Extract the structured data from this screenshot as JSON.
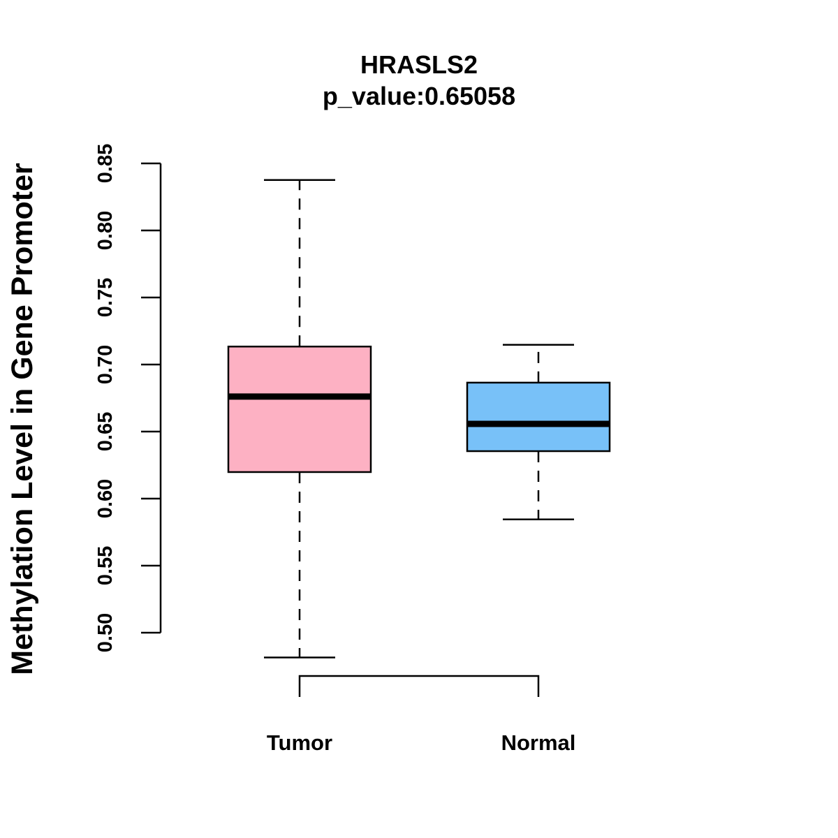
{
  "chart_data": {
    "type": "box",
    "title": "HRASLS2",
    "subtitle": "p_value:0.65058",
    "xlabel": "",
    "ylabel": "Methylation Level in Gene Promoter",
    "ylim": [
      0.5,
      0.85
    ],
    "yticks": [
      "0.50",
      "0.55",
      "0.60",
      "0.65",
      "0.70",
      "0.75",
      "0.80",
      "0.85"
    ],
    "categories": [
      "Tumor",
      "Normal"
    ],
    "boxes": [
      {
        "name": "Tumor",
        "min": 0.4815,
        "q1": 0.6198,
        "median": 0.6761,
        "q3": 0.7134,
        "max": 0.8376,
        "color": "#FDB1C3"
      },
      {
        "name": "Normal",
        "min": 0.5845,
        "q1": 0.6354,
        "median": 0.6557,
        "q3": 0.6865,
        "max": 0.7147,
        "color": "#78C1F8"
      }
    ],
    "comparison_bracket": [
      "Tumor",
      "Normal"
    ]
  }
}
